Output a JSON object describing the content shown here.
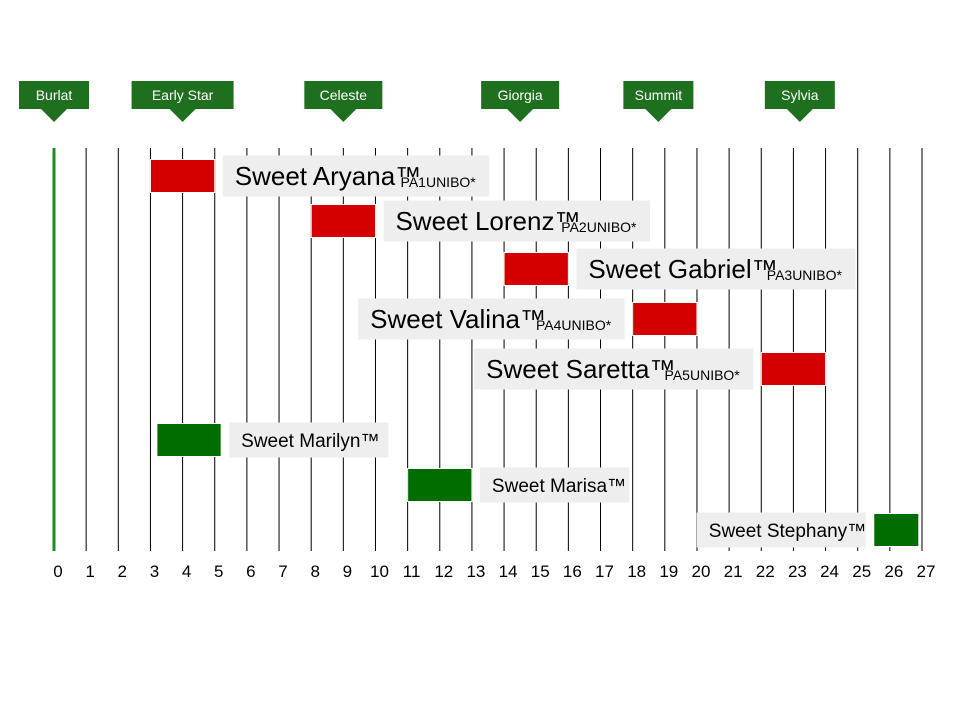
{
  "chart_data": {
    "type": "gantt",
    "x_ticks": [
      0,
      1,
      2,
      3,
      4,
      5,
      6,
      7,
      8,
      9,
      10,
      11,
      12,
      13,
      14,
      15,
      16,
      17,
      18,
      19,
      20,
      21,
      22,
      23,
      24,
      25,
      26,
      27
    ],
    "xlim": [
      0,
      27
    ],
    "grid": "vertical",
    "reference_varieties": [
      {
        "label": "Burlat",
        "x": 0
      },
      {
        "label": "Early Star",
        "x": 4
      },
      {
        "label": "Celeste",
        "x": 9
      },
      {
        "label": "Giorgia",
        "x": 14.5
      },
      {
        "label": "Summit",
        "x": 18.8
      },
      {
        "label": "Sylvia",
        "x": 23.2
      }
    ],
    "series": [
      {
        "name": "Sweet Aryana™",
        "code": "PA1UNIBO*",
        "start": 3,
        "end": 5,
        "color": "#d40000",
        "label_side": "right",
        "size": "large"
      },
      {
        "name": "Sweet Lorenz™",
        "code": "PA2UNIBO*",
        "start": 8,
        "end": 10,
        "color": "#d40000",
        "label_side": "right",
        "size": "large"
      },
      {
        "name": "Sweet Gabriel™",
        "code": "PA3UNIBO*",
        "start": 14,
        "end": 16,
        "color": "#d40000",
        "label_side": "right",
        "size": "large"
      },
      {
        "name": "Sweet Valina™",
        "code": "PA4UNIBO*",
        "start": 18,
        "end": 20,
        "color": "#d40000",
        "label_side": "left",
        "size": "large"
      },
      {
        "name": "Sweet Saretta™",
        "code": "PA5UNIBO*",
        "start": 22,
        "end": 24,
        "color": "#d40000",
        "label_side": "left",
        "size": "large"
      },
      {
        "name": "Sweet Marilyn™",
        "code": "",
        "start": 3.2,
        "end": 5.2,
        "color": "#006d00",
        "label_side": "right",
        "size": "small"
      },
      {
        "name": "Sweet Marisa™",
        "code": "",
        "start": 11,
        "end": 13,
        "color": "#006d00",
        "label_side": "right",
        "size": "small"
      },
      {
        "name": "Sweet Stephany™",
        "code": "",
        "start": 25.5,
        "end": 26.9,
        "color": "#006d00",
        "label_side": "left",
        "size": "small"
      }
    ]
  },
  "colors": {
    "reference_badge": "#1e6f1e",
    "axis_zero_line": "#1e8c1e",
    "grid_line": "#000000",
    "label_box": "#eeeeee"
  }
}
